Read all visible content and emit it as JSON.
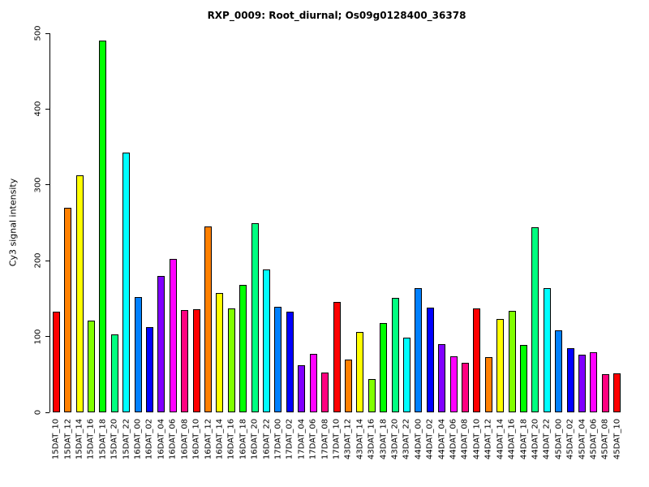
{
  "chart_data": {
    "type": "bar",
    "title": "RXP_0009: Root_diurnal; Os09g0128400_36378",
    "ylabel": "Cy3 signal intensity",
    "xlabel": "",
    "ylim": [
      0,
      500
    ],
    "yticks": [
      0,
      100,
      200,
      300,
      400,
      500
    ],
    "grid": false,
    "legend": false,
    "bar_border_color": "#000000",
    "palette": [
      "#FF0000",
      "#FF8000",
      "#FFFF00",
      "#80FF00",
      "#00FF00",
      "#00FF80",
      "#00FFFF",
      "#0080FF",
      "#0000FF",
      "#8000FF",
      "#FF00FF",
      "#FF0080"
    ],
    "categories": [
      "15DAT_10",
      "15DAT_12",
      "15DAT_14",
      "15DAT_16",
      "15DAT_18",
      "15DAT_20",
      "15DAT_22",
      "16DAT_00",
      "16DAT_02",
      "16DAT_04",
      "16DAT_06",
      "16DAT_08",
      "16DAT_10",
      "16DAT_12",
      "16DAT_14",
      "16DAT_16",
      "16DAT_18",
      "16DAT_20",
      "16DAT_22",
      "17DAT_00",
      "17DAT_02",
      "17DAT_04",
      "17DAT_06",
      "17DAT_08",
      "17DAT_10",
      "43DAT_12",
      "43DAT_14",
      "43DAT_16",
      "43DAT_18",
      "43DAT_20",
      "43DAT_22",
      "44DAT_00",
      "44DAT_02",
      "44DAT_04",
      "44DAT_06",
      "44DAT_08",
      "44DAT_10",
      "44DAT_12",
      "44DAT_14",
      "44DAT_16",
      "44DAT_18",
      "44DAT_20",
      "44DAT_22",
      "45DAT_00",
      "45DAT_02",
      "45DAT_04",
      "45DAT_06",
      "45DAT_08",
      "45DAT_10"
    ],
    "values": [
      133,
      270,
      313,
      121,
      490,
      103,
      343,
      152,
      112,
      180,
      202,
      135,
      136,
      245,
      157,
      137,
      168,
      249,
      188,
      139,
      133,
      62,
      77,
      52,
      146,
      70,
      106,
      44,
      118,
      151,
      99,
      164,
      138,
      90,
      74,
      65,
      137,
      73,
      123,
      134,
      89,
      244,
      164,
      108,
      85,
      76,
      79,
      50,
      51
    ]
  }
}
